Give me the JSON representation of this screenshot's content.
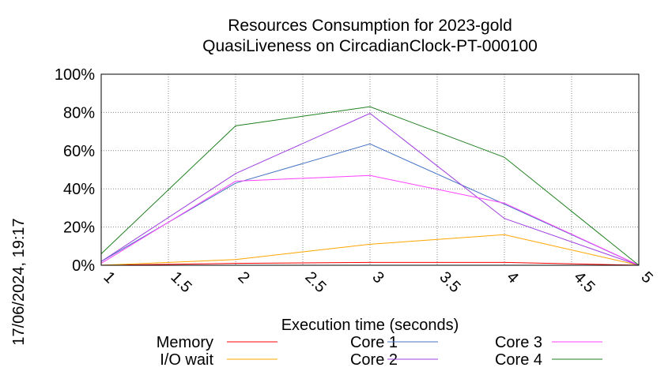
{
  "timestamp": "17/06/2024, 19:17",
  "chart_data": {
    "type": "line",
    "title": "Resources Consumption for 2023-gold",
    "subtitle": "QuasiLiveness on CircadianClock-PT-000100",
    "xlabel": "Execution time (seconds)",
    "ylabel": "",
    "xlim": [
      1,
      5
    ],
    "ylim": [
      0,
      100
    ],
    "x_ticks": [
      "1",
      "1.5",
      "2",
      "2.5",
      "3",
      "3.5",
      "4",
      "4.5",
      "5"
    ],
    "y_ticks": [
      "0%",
      "20%",
      "40%",
      "60%",
      "80%",
      "100%"
    ],
    "grid": true,
    "legend_position": "bottom",
    "x": [
      1,
      2,
      3,
      4,
      5
    ],
    "series": [
      {
        "name": "Memory",
        "color": "#ff0000",
        "values": [
          0,
          1,
          1.5,
          1.5,
          0
        ]
      },
      {
        "name": "I/O wait",
        "color": "#ffa500",
        "values": [
          0,
          3,
          11,
          16,
          0
        ]
      },
      {
        "name": "Core 1",
        "color": "#4472c4",
        "values": [
          2,
          43,
          63.5,
          32,
          0
        ]
      },
      {
        "name": "Core 2",
        "color": "#a040e0",
        "values": [
          2,
          48,
          79.5,
          24.5,
          0
        ]
      },
      {
        "name": "Core 3",
        "color": "#ff40ff",
        "values": [
          1,
          44,
          47,
          32.5,
          0
        ]
      },
      {
        "name": "Core 4",
        "color": "#208020",
        "values": [
          6,
          73,
          83,
          56.5,
          0
        ]
      }
    ]
  }
}
